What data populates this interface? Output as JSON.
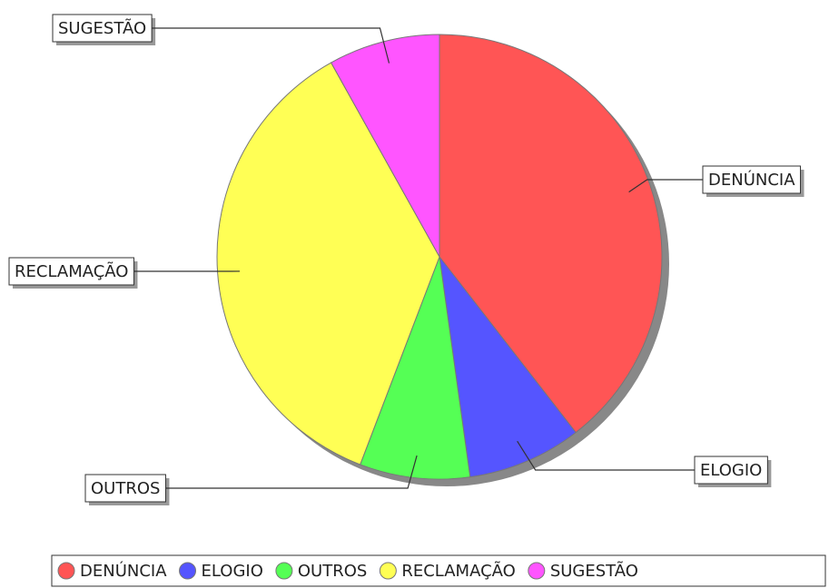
{
  "chart_data": {
    "type": "pie",
    "categories": [
      "DENÚNCIA",
      "ELOGIO",
      "OUTROS",
      "RECLAMAÇÃO",
      "SUGESTÃO"
    ],
    "values": [
      39.5,
      8.3,
      8,
      36.1,
      8.1
    ],
    "colors": [
      "#ff5555",
      "#5555ff",
      "#55ff55",
      "#ffff55",
      "#ff55ff"
    ],
    "legend": "bottom"
  }
}
